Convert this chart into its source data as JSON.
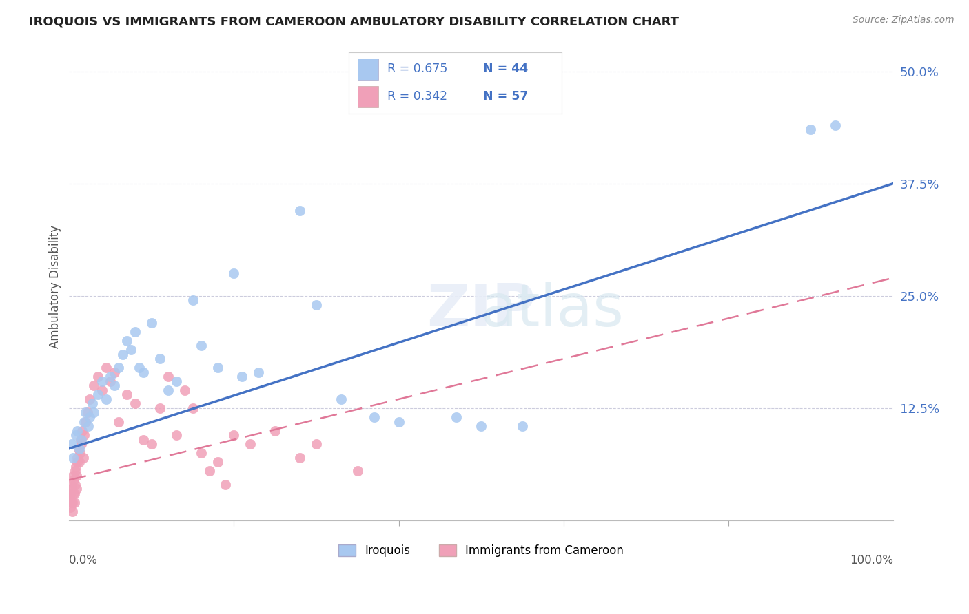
{
  "title": "IROQUOIS VS IMMIGRANTS FROM CAMEROON AMBULATORY DISABILITY CORRELATION CHART",
  "source": "Source: ZipAtlas.com",
  "ylabel": "Ambulatory Disability",
  "yticks": [
    "12.5%",
    "25.0%",
    "37.5%",
    "50.0%"
  ],
  "ytick_vals": [
    12.5,
    25.0,
    37.5,
    50.0
  ],
  "xlim": [
    0,
    100
  ],
  "ylim": [
    0,
    52
  ],
  "legend_label1": "Iroquois",
  "legend_label2": "Immigrants from Cameroon",
  "R1": "0.675",
  "N1": "44",
  "R2": "0.342",
  "N2": "57",
  "color_blue": "#a8c8f0",
  "color_pink": "#f0a0b8",
  "color_blue_line": "#4472c4",
  "color_pink_line": "#e07898",
  "blue_line_x0": 0,
  "blue_line_y0": 8.0,
  "blue_line_x1": 100,
  "blue_line_y1": 37.5,
  "pink_line_x0": 0,
  "pink_line_y0": 4.5,
  "pink_line_x1": 100,
  "pink_line_y1": 27.0,
  "iroquois_x": [
    0.3,
    0.5,
    0.8,
    1.0,
    1.2,
    1.5,
    1.8,
    2.0,
    2.3,
    2.5,
    2.8,
    3.0,
    3.5,
    4.0,
    4.5,
    5.0,
    5.5,
    6.0,
    6.5,
    7.0,
    7.5,
    8.0,
    8.5,
    9.0,
    10.0,
    11.0,
    12.0,
    13.0,
    15.0,
    16.0,
    18.0,
    20.0,
    21.0,
    23.0,
    28.0,
    30.0,
    33.0,
    37.0,
    40.0,
    47.0,
    50.0,
    55.0,
    90.0,
    93.0
  ],
  "iroquois_y": [
    8.5,
    7.0,
    9.5,
    10.0,
    8.0,
    9.0,
    11.0,
    12.0,
    10.5,
    11.5,
    13.0,
    12.0,
    14.0,
    15.5,
    13.5,
    16.0,
    15.0,
    17.0,
    18.5,
    20.0,
    19.0,
    21.0,
    17.0,
    16.5,
    22.0,
    18.0,
    14.5,
    15.5,
    24.5,
    19.5,
    17.0,
    27.5,
    16.0,
    16.5,
    34.5,
    24.0,
    13.5,
    11.5,
    11.0,
    11.5,
    10.5,
    10.5,
    43.5,
    44.0
  ],
  "cameroon_x": [
    0.05,
    0.1,
    0.15,
    0.2,
    0.25,
    0.3,
    0.35,
    0.4,
    0.45,
    0.5,
    0.55,
    0.6,
    0.65,
    0.7,
    0.75,
    0.8,
    0.85,
    0.9,
    0.95,
    1.0,
    1.1,
    1.2,
    1.3,
    1.4,
    1.5,
    1.6,
    1.7,
    1.8,
    2.0,
    2.2,
    2.5,
    3.0,
    3.5,
    4.0,
    4.5,
    5.0,
    5.5,
    6.0,
    7.0,
    8.0,
    9.0,
    10.0,
    11.0,
    12.0,
    13.0,
    14.0,
    15.0,
    16.0,
    17.0,
    18.0,
    19.0,
    20.0,
    22.0,
    25.0,
    28.0,
    30.0,
    35.0
  ],
  "cameroon_y": [
    2.5,
    3.0,
    1.5,
    2.0,
    4.0,
    3.5,
    1.0,
    2.0,
    3.0,
    5.0,
    4.5,
    3.0,
    2.0,
    5.5,
    4.0,
    6.0,
    3.5,
    5.0,
    6.5,
    7.0,
    8.0,
    6.5,
    7.5,
    9.0,
    8.5,
    10.0,
    7.0,
    9.5,
    11.0,
    12.0,
    13.5,
    15.0,
    16.0,
    14.5,
    17.0,
    15.5,
    16.5,
    11.0,
    14.0,
    13.0,
    9.0,
    8.5,
    12.5,
    16.0,
    9.5,
    14.5,
    12.5,
    7.5,
    5.5,
    6.5,
    4.0,
    9.5,
    8.5,
    10.0,
    7.0,
    8.5,
    5.5
  ]
}
